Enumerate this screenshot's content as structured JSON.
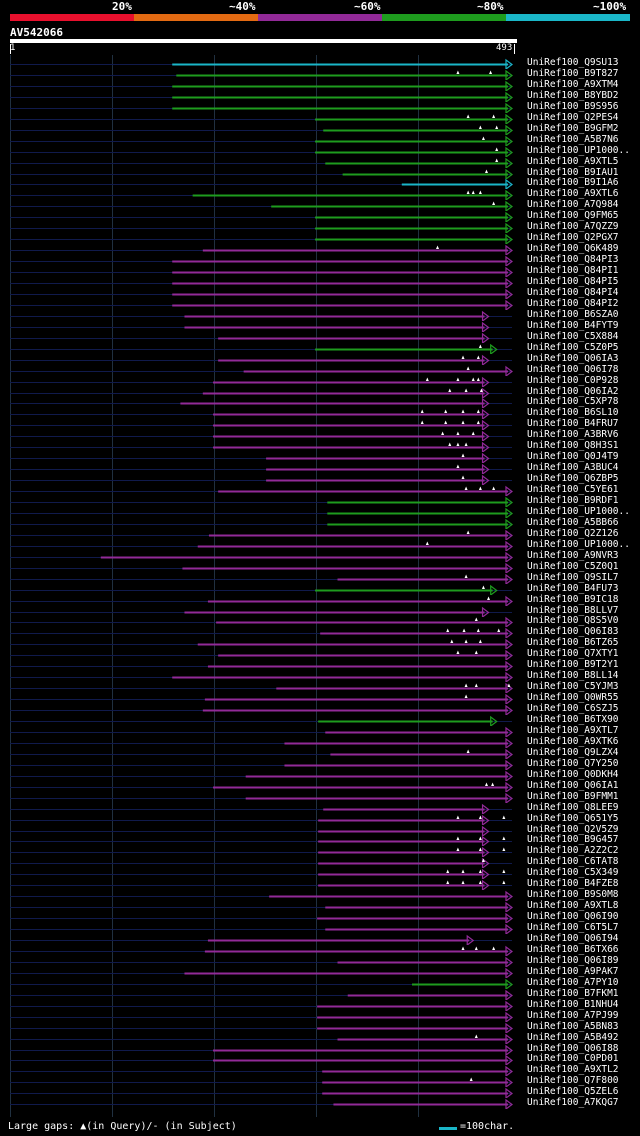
{
  "legend": {
    "labels": [
      "20%",
      "~40%",
      "~60%",
      "~80%",
      "~100%"
    ],
    "colors": [
      "#e8102d",
      "#e36a12",
      "#922a98",
      "#1e9c1e",
      "#1ab6c8"
    ]
  },
  "query": {
    "id": "AV542066",
    "start": "1",
    "end": "493",
    "length": 493
  },
  "colors": {
    "background": "#000000",
    "query_line": "#101a4c",
    "gridline": "#203040",
    "gap_marker": "#ffffff"
  },
  "hits": [
    {
      "name": "UniRef100_Q9SU13",
      "color": "cyan",
      "start": 160,
      "end": 493
    },
    {
      "name": "UniRef100_B9T827",
      "color": "green",
      "start": 164,
      "end": 493,
      "marks": [
        440,
        472
      ]
    },
    {
      "name": "UniRef100_A9XTM4",
      "color": "green",
      "start": 160,
      "end": 493
    },
    {
      "name": "UniRef100_B8YBD2",
      "color": "green",
      "start": 160,
      "end": 493
    },
    {
      "name": "UniRef100_B9S956",
      "color": "green",
      "start": 160,
      "end": 493
    },
    {
      "name": "UniRef100_Q2PES4",
      "color": "green",
      "start": 300,
      "end": 493,
      "marks": [
        450,
        475
      ]
    },
    {
      "name": "UniRef100_B9GFM2",
      "color": "green",
      "start": 308,
      "end": 493,
      "marks": [
        462,
        478
      ]
    },
    {
      "name": "UniRef100_A5B7N6",
      "color": "green",
      "start": 300,
      "end": 493,
      "marks": [
        465
      ]
    },
    {
      "name": "UniRef100_UP1000..",
      "color": "green",
      "start": 300,
      "end": 493,
      "marks": [
        478
      ]
    },
    {
      "name": "UniRef100_A9XTL5",
      "color": "green",
      "start": 310,
      "end": 493,
      "marks": [
        478
      ]
    },
    {
      "name": "UniRef100_B9IAU1",
      "color": "green",
      "start": 327,
      "end": 493,
      "marks": [
        468
      ]
    },
    {
      "name": "UniRef100_B9I1A6",
      "color": "cyan",
      "start": 385,
      "end": 493
    },
    {
      "name": "UniRef100_A9XTL6",
      "color": "green",
      "start": 180,
      "end": 493,
      "marks": [
        450,
        455,
        462
      ]
    },
    {
      "name": "UniRef100_A7Q984",
      "color": "green",
      "start": 257,
      "end": 493,
      "marks": [
        475
      ]
    },
    {
      "name": "UniRef100_Q9FM65",
      "color": "green",
      "start": 300,
      "end": 493
    },
    {
      "name": "UniRef100_A7QZZ9",
      "color": "green",
      "start": 300,
      "end": 493
    },
    {
      "name": "UniRef100_Q2PGX7",
      "color": "green",
      "start": 300,
      "end": 493
    },
    {
      "name": "UniRef100_Q6K489",
      "color": "purple",
      "start": 190,
      "end": 493,
      "marks": [
        420
      ]
    },
    {
      "name": "UniRef100_Q84PI3",
      "color": "purple",
      "start": 160,
      "end": 493
    },
    {
      "name": "UniRef100_Q84PI1",
      "color": "purple",
      "start": 160,
      "end": 493
    },
    {
      "name": "UniRef100_Q84PI5",
      "color": "purple",
      "start": 160,
      "end": 493
    },
    {
      "name": "UniRef100_Q84PI4",
      "color": "purple",
      "start": 160,
      "end": 493
    },
    {
      "name": "UniRef100_Q84PI2",
      "color": "purple",
      "start": 160,
      "end": 493
    },
    {
      "name": "UniRef100_B6SZA0",
      "color": "purple",
      "start": 172,
      "end": 470
    },
    {
      "name": "UniRef100_B4FYT9",
      "color": "purple",
      "start": 172,
      "end": 470
    },
    {
      "name": "UniRef100_C5X884",
      "color": "purple",
      "start": 205,
      "end": 470
    },
    {
      "name": "UniRef100_C5Z0P5",
      "color": "green",
      "start": 300,
      "end": 478,
      "marks": [
        462
      ]
    },
    {
      "name": "UniRef100_Q06IA3",
      "color": "purple",
      "start": 205,
      "end": 470,
      "marks": [
        445,
        460
      ]
    },
    {
      "name": "UniRef100_Q06I78",
      "color": "purple",
      "start": 230,
      "end": 493,
      "marks": [
        450
      ]
    },
    {
      "name": "UniRef100_C0P928",
      "color": "purple",
      "start": 200,
      "end": 470,
      "marks": [
        410,
        440,
        455,
        460
      ]
    },
    {
      "name": "UniRef100_Q06IA2",
      "color": "purple",
      "start": 190,
      "end": 470,
      "marks": [
        432,
        448,
        463
      ]
    },
    {
      "name": "UniRef100_C5XP78",
      "color": "purple",
      "start": 168,
      "end": 470
    },
    {
      "name": "UniRef100_B6SL10",
      "color": "purple",
      "start": 200,
      "end": 470,
      "marks": [
        405,
        428,
        445,
        460
      ]
    },
    {
      "name": "UniRef100_B4FRU7",
      "color": "purple",
      "start": 200,
      "end": 470,
      "marks": [
        405,
        428,
        445,
        460
      ]
    },
    {
      "name": "UniRef100_A3BRV6",
      "color": "purple",
      "start": 200,
      "end": 470,
      "marks": [
        425,
        440,
        455
      ]
    },
    {
      "name": "UniRef100_Q8H3S1",
      "color": "purple",
      "start": 200,
      "end": 470,
      "marks": [
        432,
        440,
        448
      ]
    },
    {
      "name": "UniRef100_Q0J4T9",
      "color": "purple",
      "start": 252,
      "end": 470,
      "marks": [
        445
      ]
    },
    {
      "name": "UniRef100_A3BUC4",
      "color": "purple",
      "start": 252,
      "end": 470,
      "marks": [
        440
      ]
    },
    {
      "name": "UniRef100_Q6ZBP5",
      "color": "purple",
      "start": 252,
      "end": 470,
      "marks": [
        445
      ]
    },
    {
      "name": "UniRef100_C5YE61",
      "color": "purple",
      "start": 205,
      "end": 493,
      "marks": [
        448,
        462,
        475
      ]
    },
    {
      "name": "UniRef100_B9RDF1",
      "color": "green",
      "start": 312,
      "end": 493
    },
    {
      "name": "UniRef100_UP1000..",
      "color": "green",
      "start": 312,
      "end": 493
    },
    {
      "name": "UniRef100_A5BB66",
      "color": "green",
      "start": 312,
      "end": 493
    },
    {
      "name": "UniRef100_Q2Z126",
      "color": "purple",
      "start": 196,
      "end": 493,
      "marks": [
        450
      ]
    },
    {
      "name": "UniRef100_UP1000..",
      "color": "purple",
      "start": 185,
      "end": 493,
      "marks": [
        410
      ]
    },
    {
      "name": "UniRef100_A9NVR3",
      "color": "purple",
      "start": 90,
      "end": 493
    },
    {
      "name": "UniRef100_C5Z0Q1",
      "color": "purple",
      "start": 170,
      "end": 493
    },
    {
      "name": "UniRef100_Q9SIL7",
      "color": "purple",
      "start": 322,
      "end": 493,
      "marks": [
        448
      ]
    },
    {
      "name": "UniRef100_B4FU73",
      "color": "green",
      "start": 300,
      "end": 478,
      "marks": [
        465
      ]
    },
    {
      "name": "UniRef100_B9IC18",
      "color": "purple",
      "start": 195,
      "end": 493,
      "marks": [
        470
      ]
    },
    {
      "name": "UniRef100_B8LLV7",
      "color": "purple",
      "start": 172,
      "end": 470
    },
    {
      "name": "UniRef100_Q8S5V0",
      "color": "purple",
      "start": 203,
      "end": 493,
      "marks": [
        458
      ]
    },
    {
      "name": "UniRef100_Q06I83",
      "color": "purple",
      "start": 305,
      "end": 493,
      "marks": [
        430,
        446,
        460,
        480
      ]
    },
    {
      "name": "UniRef100_B6TZ65",
      "color": "purple",
      "start": 185,
      "end": 493,
      "marks": [
        434,
        448,
        462
      ]
    },
    {
      "name": "UniRef100_Q7XTY1",
      "color": "purple",
      "start": 205,
      "end": 493,
      "marks": [
        440,
        458
      ]
    },
    {
      "name": "UniRef100_B9T2Y1",
      "color": "purple",
      "start": 195,
      "end": 493
    },
    {
      "name": "UniRef100_B8LL14",
      "color": "purple",
      "start": 160,
      "end": 493
    },
    {
      "name": "UniRef100_C5YJM3",
      "color": "purple",
      "start": 262,
      "end": 493,
      "marks": [
        448,
        458,
        490
      ]
    },
    {
      "name": "UniRef100_Q0WR55",
      "color": "purple",
      "start": 192,
      "end": 493,
      "marks": [
        448
      ]
    },
    {
      "name": "UniRef100_C6SZJ5",
      "color": "purple",
      "start": 190,
      "end": 493
    },
    {
      "name": "UniRef100_B6TX90",
      "color": "green",
      "start": 303,
      "end": 478
    },
    {
      "name": "UniRef100_A9XTL7",
      "color": "purple",
      "start": 310,
      "end": 493
    },
    {
      "name": "UniRef100_A9XTK6",
      "color": "purple",
      "start": 270,
      "end": 493
    },
    {
      "name": "UniRef100_Q9LZX4",
      "color": "purple",
      "start": 315,
      "end": 493,
      "marks": [
        450
      ]
    },
    {
      "name": "UniRef100_Q7Y250",
      "color": "purple",
      "start": 270,
      "end": 493
    },
    {
      "name": "UniRef100_Q0DKH4",
      "color": "purple",
      "start": 232,
      "end": 493
    },
    {
      "name": "UniRef100_Q06IA1",
      "color": "purple",
      "start": 200,
      "end": 493,
      "marks": [
        468,
        474
      ]
    },
    {
      "name": "UniRef100_B9FMM1",
      "color": "purple",
      "start": 232,
      "end": 493
    },
    {
      "name": "UniRef100_Q8LEE9",
      "color": "purple",
      "start": 308,
      "end": 470
    },
    {
      "name": "UniRef100_Q651Y5",
      "color": "purple",
      "start": 303,
      "end": 470,
      "marks": [
        440,
        462,
        485
      ]
    },
    {
      "name": "UniRef100_Q2V5Z9",
      "color": "purple",
      "start": 303,
      "end": 470
    },
    {
      "name": "UniRef100_B9G457",
      "color": "purple",
      "start": 303,
      "end": 470,
      "marks": [
        440,
        462,
        485
      ]
    },
    {
      "name": "UniRef100_A2Z2C2",
      "color": "purple",
      "start": 303,
      "end": 470,
      "marks": [
        440,
        462,
        485
      ]
    },
    {
      "name": "UniRef100_C6TAT8",
      "color": "purple",
      "start": 303,
      "end": 470,
      "marks": [
        465
      ]
    },
    {
      "name": "UniRef100_C5X349",
      "color": "purple",
      "start": 303,
      "end": 470,
      "marks": [
        430,
        445,
        462,
        485
      ]
    },
    {
      "name": "UniRef100_B4FZE8",
      "color": "purple",
      "start": 303,
      "end": 470,
      "marks": [
        430,
        445,
        462,
        485
      ]
    },
    {
      "name": "UniRef100_B9S0M8",
      "color": "purple",
      "start": 255,
      "end": 493
    },
    {
      "name": "UniRef100_A9XTL8",
      "color": "purple",
      "start": 310,
      "end": 493
    },
    {
      "name": "UniRef100_Q06I90",
      "color": "purple",
      "start": 302,
      "end": 493
    },
    {
      "name": "UniRef100_C6T5L7",
      "color": "purple",
      "start": 310,
      "end": 493
    },
    {
      "name": "UniRef100_Q06I94",
      "color": "purple",
      "start": 195,
      "end": 455
    },
    {
      "name": "UniRef100_B6TX66",
      "color": "purple",
      "start": 192,
      "end": 493,
      "marks": [
        445,
        458,
        475
      ]
    },
    {
      "name": "UniRef100_Q06I89",
      "color": "purple",
      "start": 322,
      "end": 493
    },
    {
      "name": "UniRef100_A9PAK7",
      "color": "purple",
      "start": 172,
      "end": 493
    },
    {
      "name": "UniRef100_A7PY10",
      "color": "green",
      "start": 395,
      "end": 493
    },
    {
      "name": "UniRef100_B7FKM1",
      "color": "purple",
      "start": 332,
      "end": 493
    },
    {
      "name": "UniRef100_B1NHU4",
      "color": "purple",
      "start": 302,
      "end": 493
    },
    {
      "name": "UniRef100_A7PJ99",
      "color": "purple",
      "start": 302,
      "end": 493
    },
    {
      "name": "UniRef100_A5BN83",
      "color": "purple",
      "start": 302,
      "end": 493
    },
    {
      "name": "UniRef100_A5B492",
      "color": "purple",
      "start": 322,
      "end": 493,
      "marks": [
        458
      ]
    },
    {
      "name": "UniRef100_Q06I88",
      "color": "purple",
      "start": 200,
      "end": 493
    },
    {
      "name": "UniRef100_C0PD01",
      "color": "purple",
      "start": 200,
      "end": 493
    },
    {
      "name": "UniRef100_A9XTL2",
      "color": "purple",
      "start": 307,
      "end": 493
    },
    {
      "name": "UniRef100_Q7F800",
      "color": "purple",
      "start": 307,
      "end": 493,
      "marks": [
        453
      ]
    },
    {
      "name": "UniRef100_Q5ZEL6",
      "color": "purple",
      "start": 307,
      "end": 493
    },
    {
      "name": "UniRef100_A7KQG7",
      "color": "purple",
      "start": 318,
      "end": 493
    }
  ],
  "footer": {
    "gaps_text": "Large gaps: ▲(in Query)/- (in Subject)",
    "scale_text": "=100char."
  }
}
